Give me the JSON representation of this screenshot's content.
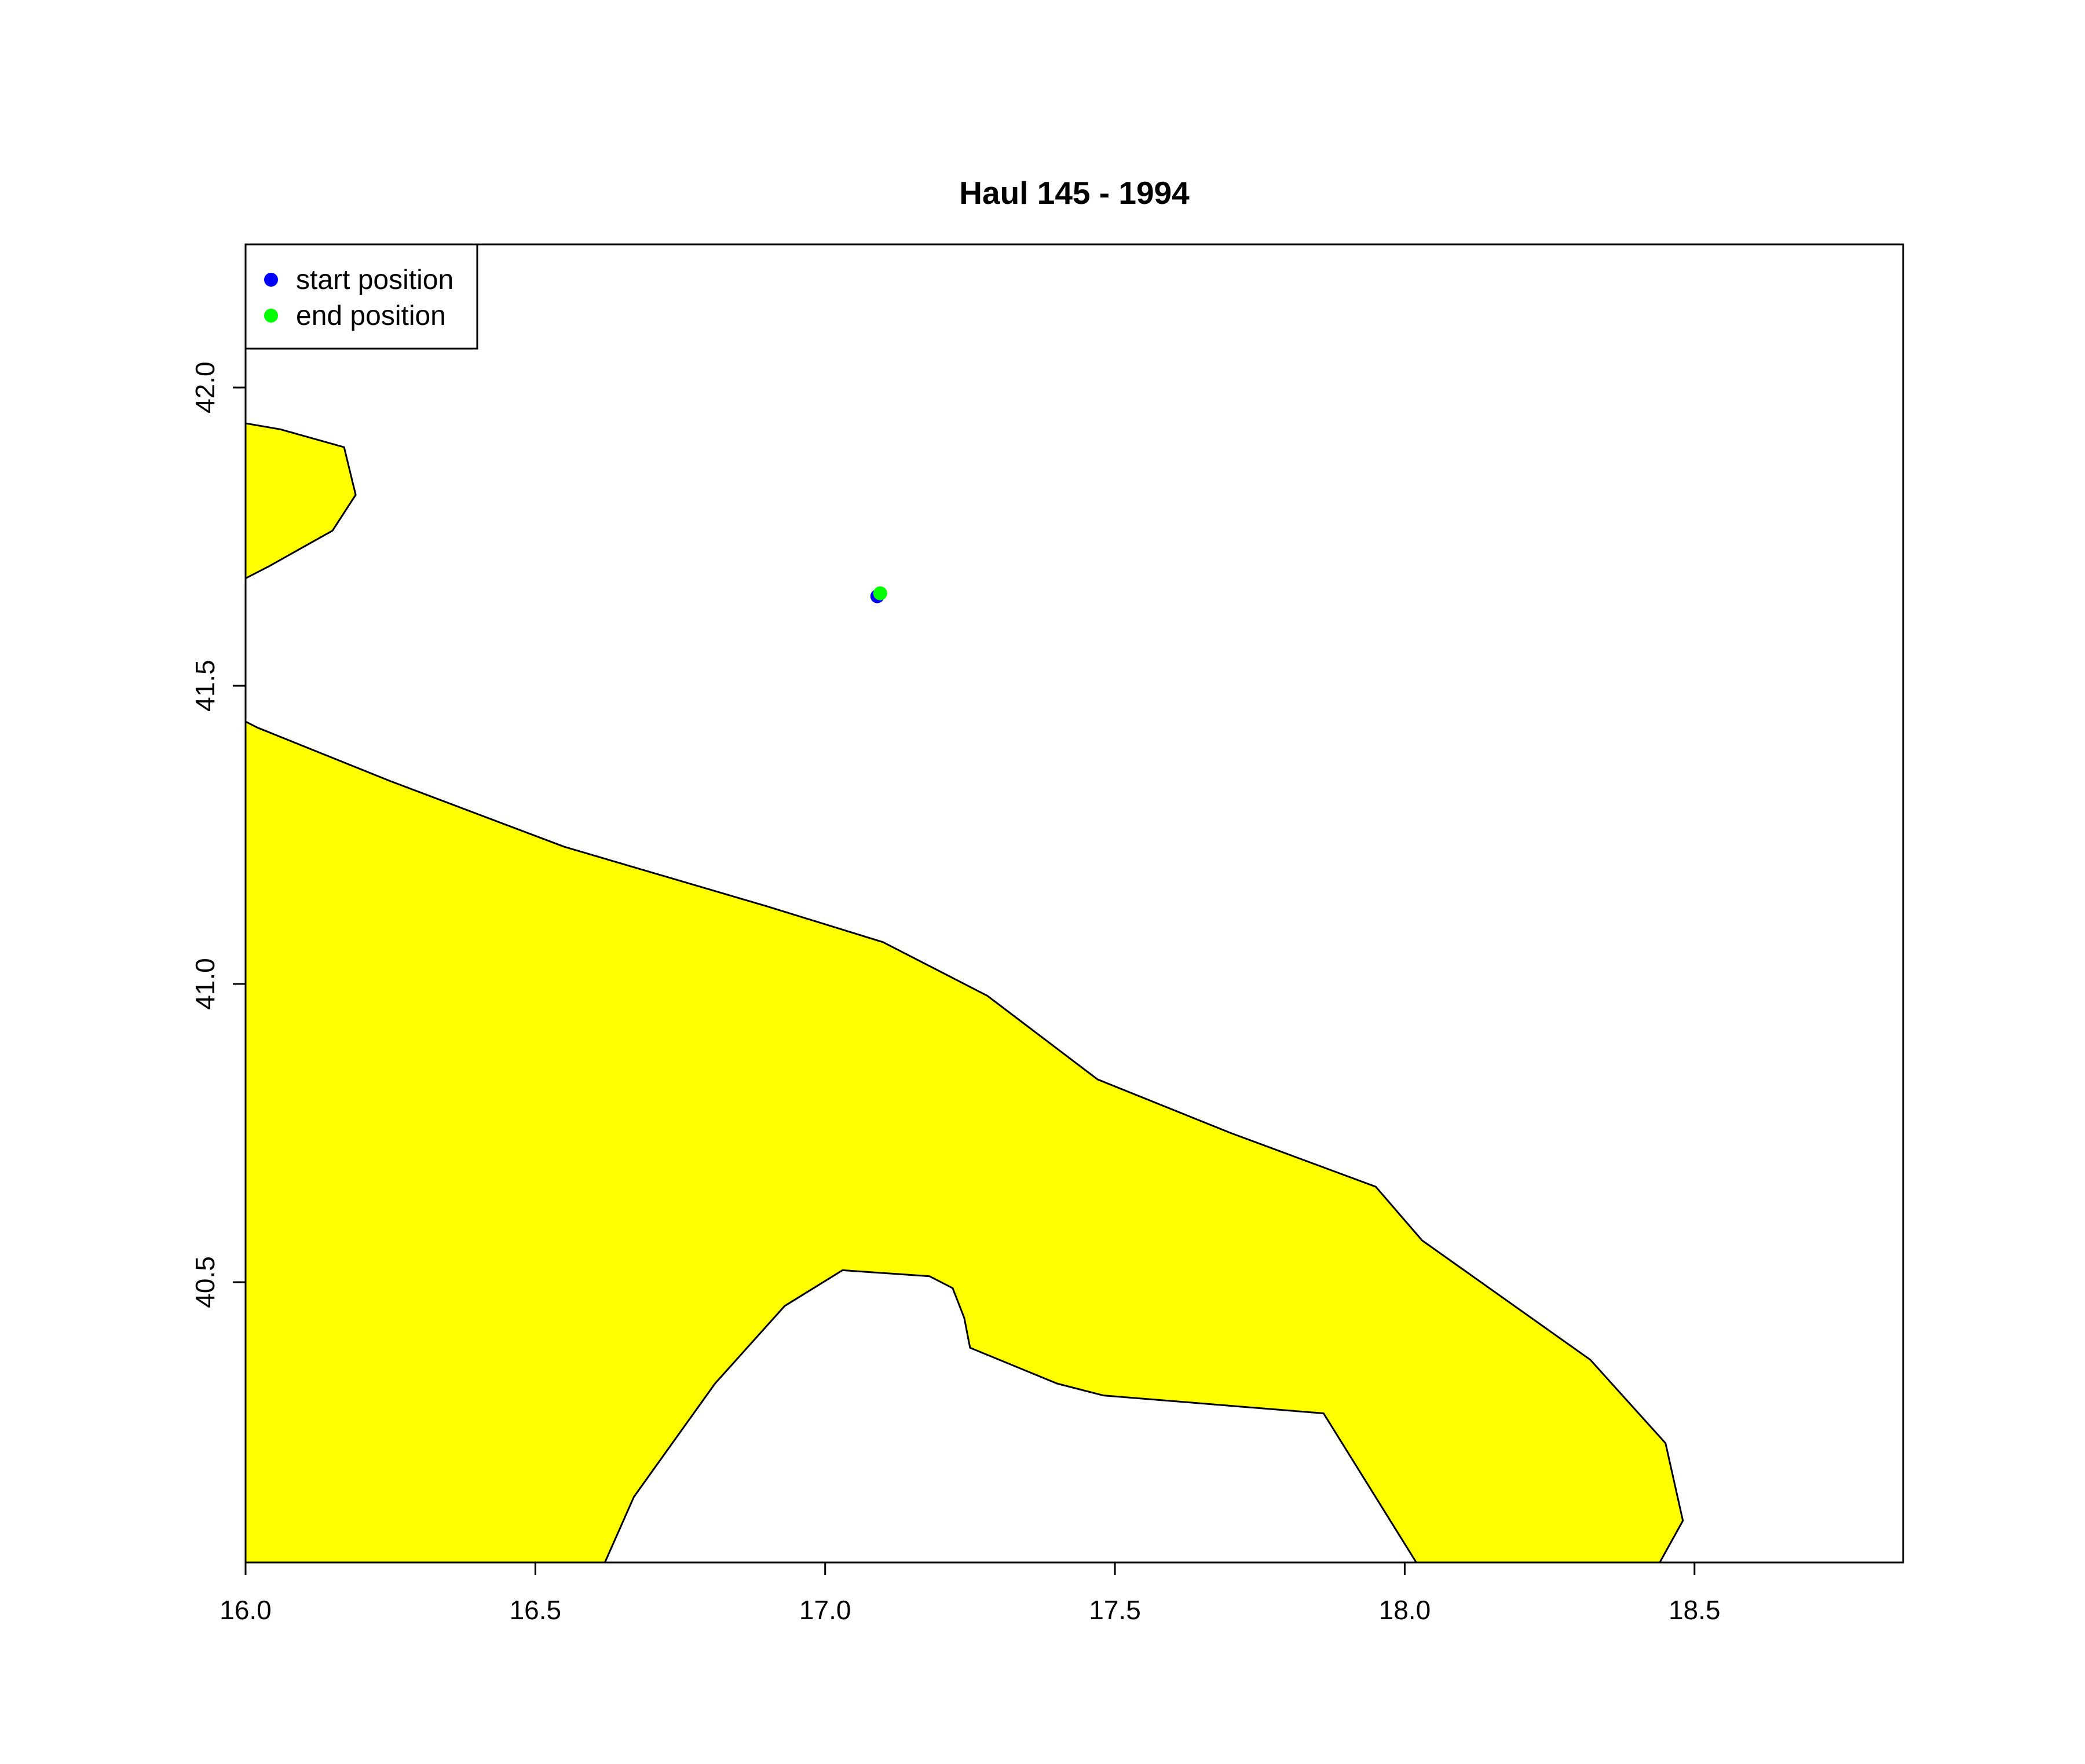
{
  "chart_data": {
    "type": "scatter",
    "title": "Haul 145 - 1994",
    "xlabel": "",
    "ylabel": "",
    "xlim": [
      16.0,
      18.86
    ],
    "ylim": [
      40.03,
      42.24
    ],
    "x_ticks": [
      {
        "value": 16.0,
        "label": "16.0"
      },
      {
        "value": 16.5,
        "label": "16.5"
      },
      {
        "value": 17.0,
        "label": "17.0"
      },
      {
        "value": 17.5,
        "label": "17.5"
      },
      {
        "value": 18.0,
        "label": "18.0"
      },
      {
        "value": 18.5,
        "label": "18.5"
      }
    ],
    "y_ticks": [
      {
        "value": 40.5,
        "label": "40.5"
      },
      {
        "value": 41.0,
        "label": "41.0"
      },
      {
        "value": 41.5,
        "label": "41.5"
      },
      {
        "value": 42.0,
        "label": "42.0"
      }
    ],
    "grid": false,
    "legend_position": "top-left",
    "land_color": "#ffff00",
    "land_outline_color": "#000000",
    "land_polygons": [
      {
        "name": "northern-coast",
        "points": [
          [
            16.0,
            41.94
          ],
          [
            16.06,
            41.93
          ],
          [
            16.17,
            41.9
          ],
          [
            16.19,
            41.82
          ],
          [
            16.15,
            41.76
          ],
          [
            16.04,
            41.7
          ],
          [
            16.0,
            41.68
          ]
        ]
      },
      {
        "name": "southern-coast",
        "points": [
          [
            16.0,
            41.44
          ],
          [
            16.02,
            41.43
          ],
          [
            16.25,
            41.34
          ],
          [
            16.55,
            41.23
          ],
          [
            16.9,
            41.13
          ],
          [
            17.1,
            41.07
          ],
          [
            17.28,
            40.98
          ],
          [
            17.47,
            40.84
          ],
          [
            17.7,
            40.75
          ],
          [
            17.95,
            40.66
          ],
          [
            18.03,
            40.57
          ],
          [
            18.32,
            40.37
          ],
          [
            18.45,
            40.23
          ],
          [
            18.48,
            40.1
          ],
          [
            18.44,
            40.03
          ],
          [
            18.02,
            40.03
          ],
          [
            17.86,
            40.28
          ],
          [
            17.48,
            40.31
          ],
          [
            17.4,
            40.33
          ],
          [
            17.25,
            40.39
          ],
          [
            17.24,
            40.44
          ],
          [
            17.22,
            40.49
          ],
          [
            17.18,
            40.51
          ],
          [
            17.03,
            40.52
          ],
          [
            16.93,
            40.46
          ],
          [
            16.81,
            40.33
          ],
          [
            16.67,
            40.14
          ],
          [
            16.62,
            40.03
          ],
          [
            16.0,
            40.03
          ]
        ]
      }
    ],
    "series": [
      {
        "name": "start position",
        "color": "#0000ff",
        "points": [
          {
            "x": 17.09,
            "y": 41.65
          }
        ]
      },
      {
        "name": "end position",
        "color": "#00ff00",
        "points": [
          {
            "x": 17.095,
            "y": 41.655
          }
        ]
      }
    ]
  }
}
